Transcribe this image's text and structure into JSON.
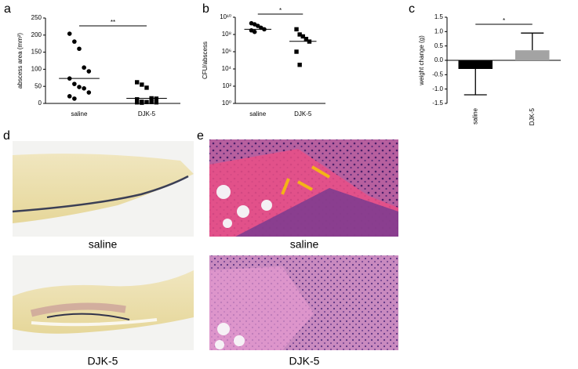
{
  "panels": [
    "a",
    "b",
    "c",
    "d",
    "e"
  ],
  "chart_data": [
    {
      "type": "dot",
      "ylabel": "abscess area (mm²)",
      "categories": [
        "saline",
        "DJK-5"
      ],
      "groups": [
        {
          "marker": "circle",
          "values": [
            204,
            181,
            160,
            105,
            94,
            73,
            57,
            48,
            44,
            32,
            21,
            14
          ],
          "mean": 73
        },
        {
          "marker": "square",
          "values": [
            62,
            55,
            46,
            15,
            14,
            12,
            5,
            4,
            4,
            3,
            3,
            2
          ],
          "mean": 15
        }
      ],
      "ylim": [
        0,
        250
      ],
      "yticks": [
        0,
        50,
        100,
        150,
        200,
        250
      ],
      "annotation": "**",
      "color": "#000000"
    },
    {
      "type": "dot",
      "ylabel": "CFU/abscess",
      "categories": [
        "saline",
        "DJK-5"
      ],
      "log": true,
      "groups": [
        {
          "marker": "circle",
          "values": [
            2000000000,
            1500000000,
            1000000000,
            600000000,
            400000000,
            300000000,
            200000000
          ],
          "mean": 400000000
        },
        {
          "marker": "square",
          "values": [
            400000000,
            100000000,
            60000000,
            30000000,
            15000000,
            1000000,
            30000
          ],
          "mean": 16000000
        }
      ],
      "ylim": [
        1,
        10000000000
      ],
      "yticks": [
        {
          "value": 1,
          "label": "10⁰"
        },
        {
          "value": 100,
          "label": "10²"
        },
        {
          "value": 10000,
          "label": "10⁴"
        },
        {
          "value": 1000000,
          "label": "10⁶"
        },
        {
          "value": 100000000,
          "label": "10⁸"
        },
        {
          "value": 10000000000,
          "label": "10¹⁰"
        }
      ],
      "annotation": "*",
      "color": "#000000"
    },
    {
      "type": "bar",
      "ylabel": "weight change (g)",
      "categories": [
        "saline",
        "DJK-5"
      ],
      "values": [
        -0.3,
        0.35
      ],
      "errors": [
        0.9,
        0.6
      ],
      "colors": [
        "#000000",
        "#a3a3a3"
      ],
      "ylim": [
        -1.5,
        1.5
      ],
      "yticks": [
        {
          "value": -1.5,
          "label": "-1.5"
        },
        {
          "value": -1,
          "label": "-1.0"
        },
        {
          "value": -0.5,
          "label": "-0.5"
        },
        {
          "value": 0,
          "label": "0.0"
        },
        0.5,
        {
          "value": 1,
          "label": "1.0"
        },
        1.5
      ],
      "annotation": "*"
    }
  ],
  "images": {
    "d": [
      "saline",
      "DJK-5"
    ],
    "e": [
      "saline",
      "DJK-5"
    ]
  }
}
